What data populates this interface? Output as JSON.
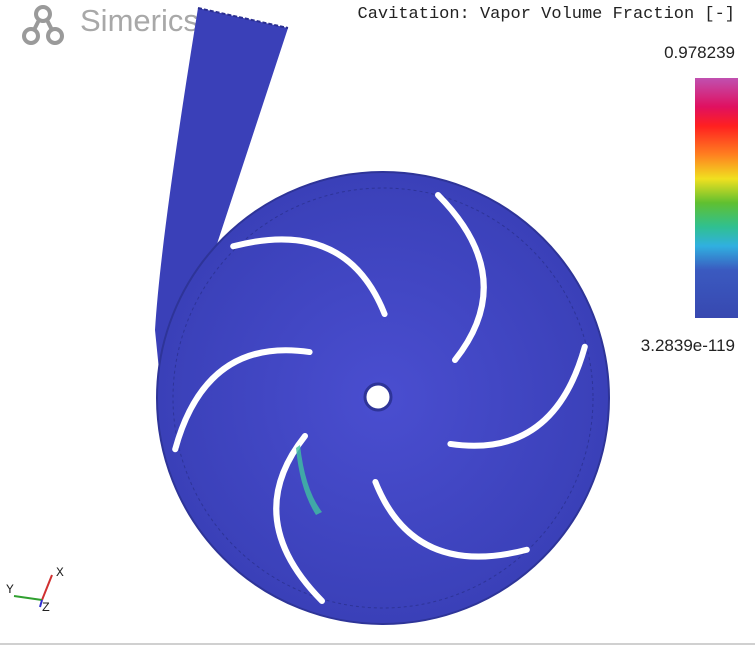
{
  "logo": {
    "text": "Simerics"
  },
  "title": "Cavitation: Vapor Volume Fraction [-]",
  "colorbar": {
    "max_label": "0.978239",
    "min_label": "3.2839e-119"
  },
  "axes": {
    "x": "X",
    "y": "Y",
    "z": "Z"
  }
}
